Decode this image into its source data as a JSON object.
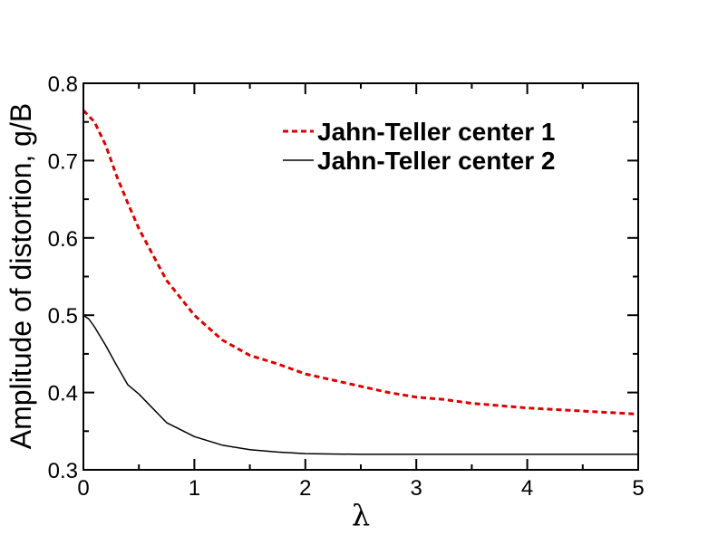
{
  "chart_data": {
    "type": "line",
    "title": "",
    "xlabel": "λ",
    "ylabel": "Amplitude of distortion, g/B",
    "xlim": [
      0,
      5
    ],
    "ylim": [
      0.3,
      0.8
    ],
    "xticks": [
      0,
      1,
      2,
      3,
      4,
      5
    ],
    "xtick_labels": [
      "0",
      "1",
      "2",
      "3",
      "4",
      "5"
    ],
    "yticks": [
      0.3,
      0.4,
      0.5,
      0.6,
      0.7,
      0.8
    ],
    "ytick_labels": [
      "0.3",
      "0.4",
      "0.5",
      "0.6",
      "0.7",
      "0.8"
    ],
    "grid": false,
    "legend_position": "top-right",
    "series": [
      {
        "name": "Jahn-Teller center 1",
        "color": "#dd0000",
        "style": "dashed",
        "x": [
          0,
          0.1,
          0.2,
          0.3,
          0.4,
          0.5,
          0.6,
          0.75,
          1.0,
          1.25,
          1.5,
          1.75,
          2.0,
          2.25,
          2.5,
          2.75,
          3.0,
          3.25,
          3.5,
          3.75,
          4.0,
          4.25,
          4.5,
          4.75,
          5.0
        ],
        "y": [
          0.765,
          0.75,
          0.72,
          0.68,
          0.645,
          0.612,
          0.585,
          0.545,
          0.5,
          0.468,
          0.448,
          0.437,
          0.424,
          0.416,
          0.408,
          0.4,
          0.394,
          0.391,
          0.386,
          0.383,
          0.38,
          0.378,
          0.376,
          0.374,
          0.372
        ]
      },
      {
        "name": "Jahn-Teller center 2",
        "color": "#000000",
        "style": "solid",
        "x": [
          0,
          0.05,
          0.1,
          0.2,
          0.3,
          0.4,
          0.5,
          0.75,
          1.0,
          1.25,
          1.5,
          1.75,
          2.0,
          2.5,
          3.0,
          3.5,
          4.0,
          4.5,
          5.0
        ],
        "y": [
          0.5,
          0.495,
          0.485,
          0.461,
          0.435,
          0.41,
          0.398,
          0.361,
          0.343,
          0.332,
          0.326,
          0.323,
          0.321,
          0.32,
          0.32,
          0.32,
          0.32,
          0.32,
          0.32
        ]
      }
    ]
  }
}
